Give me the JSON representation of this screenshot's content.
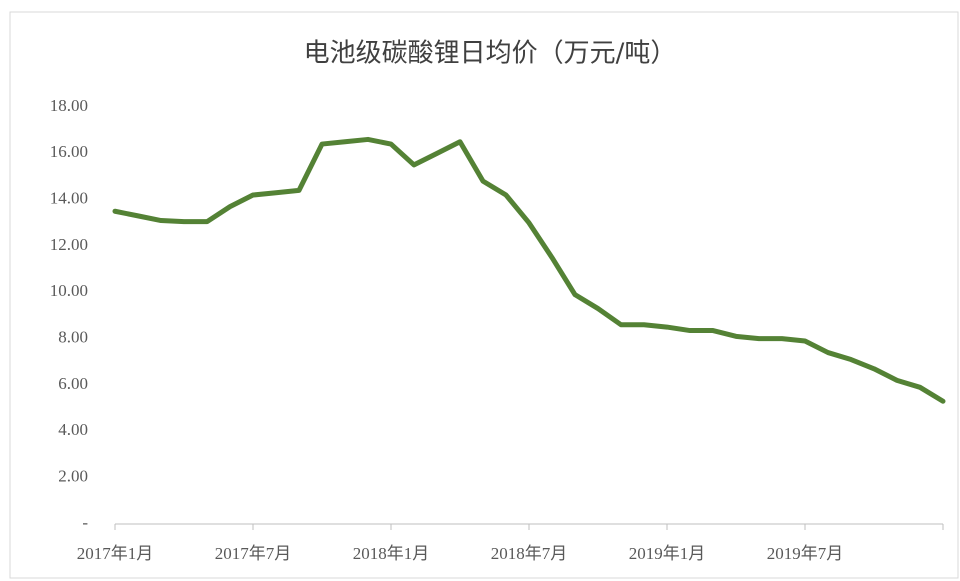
{
  "chart_data": {
    "type": "line",
    "title": "电池级碳酸锂日均价（万元/吨）",
    "categories": [
      "2017年1月",
      null,
      null,
      null,
      null,
      null,
      "2017年7月",
      null,
      null,
      null,
      null,
      null,
      "2018年1月",
      null,
      null,
      null,
      null,
      null,
      "2018年7月",
      null,
      null,
      null,
      null,
      null,
      "2019年1月",
      null,
      null,
      null,
      null,
      null,
      "2019年7月",
      null,
      null,
      null,
      null,
      null,
      null
    ],
    "series": [
      {
        "name": "电池级碳酸锂日均价",
        "color": "#548235",
        "values": [
          13.5,
          13.3,
          13.1,
          13.05,
          13.05,
          13.7,
          14.2,
          14.3,
          14.4,
          16.4,
          16.5,
          16.6,
          16.4,
          15.5,
          16.0,
          16.5,
          14.8,
          14.2,
          13.0,
          11.5,
          9.9,
          9.3,
          8.6,
          8.6,
          8.5,
          8.35,
          8.35,
          8.1,
          8.0,
          8.0,
          7.9,
          7.4,
          7.1,
          6.7,
          6.2,
          5.9,
          5.3
        ]
      }
    ],
    "ylim": [
      0,
      18
    ],
    "yticks": [
      {
        "value": 0,
        "label": "-"
      },
      {
        "value": 2,
        "label": "2.00"
      },
      {
        "value": 4,
        "label": "4.00"
      },
      {
        "value": 6,
        "label": "6.00"
      },
      {
        "value": 8,
        "label": "8.00"
      },
      {
        "value": 10,
        "label": "10.00"
      },
      {
        "value": 12,
        "label": "12.00"
      },
      {
        "value": 14,
        "label": "14.00"
      },
      {
        "value": 16,
        "label": "16.00"
      },
      {
        "value": 18,
        "label": "18.00"
      }
    ],
    "grid": false
  }
}
